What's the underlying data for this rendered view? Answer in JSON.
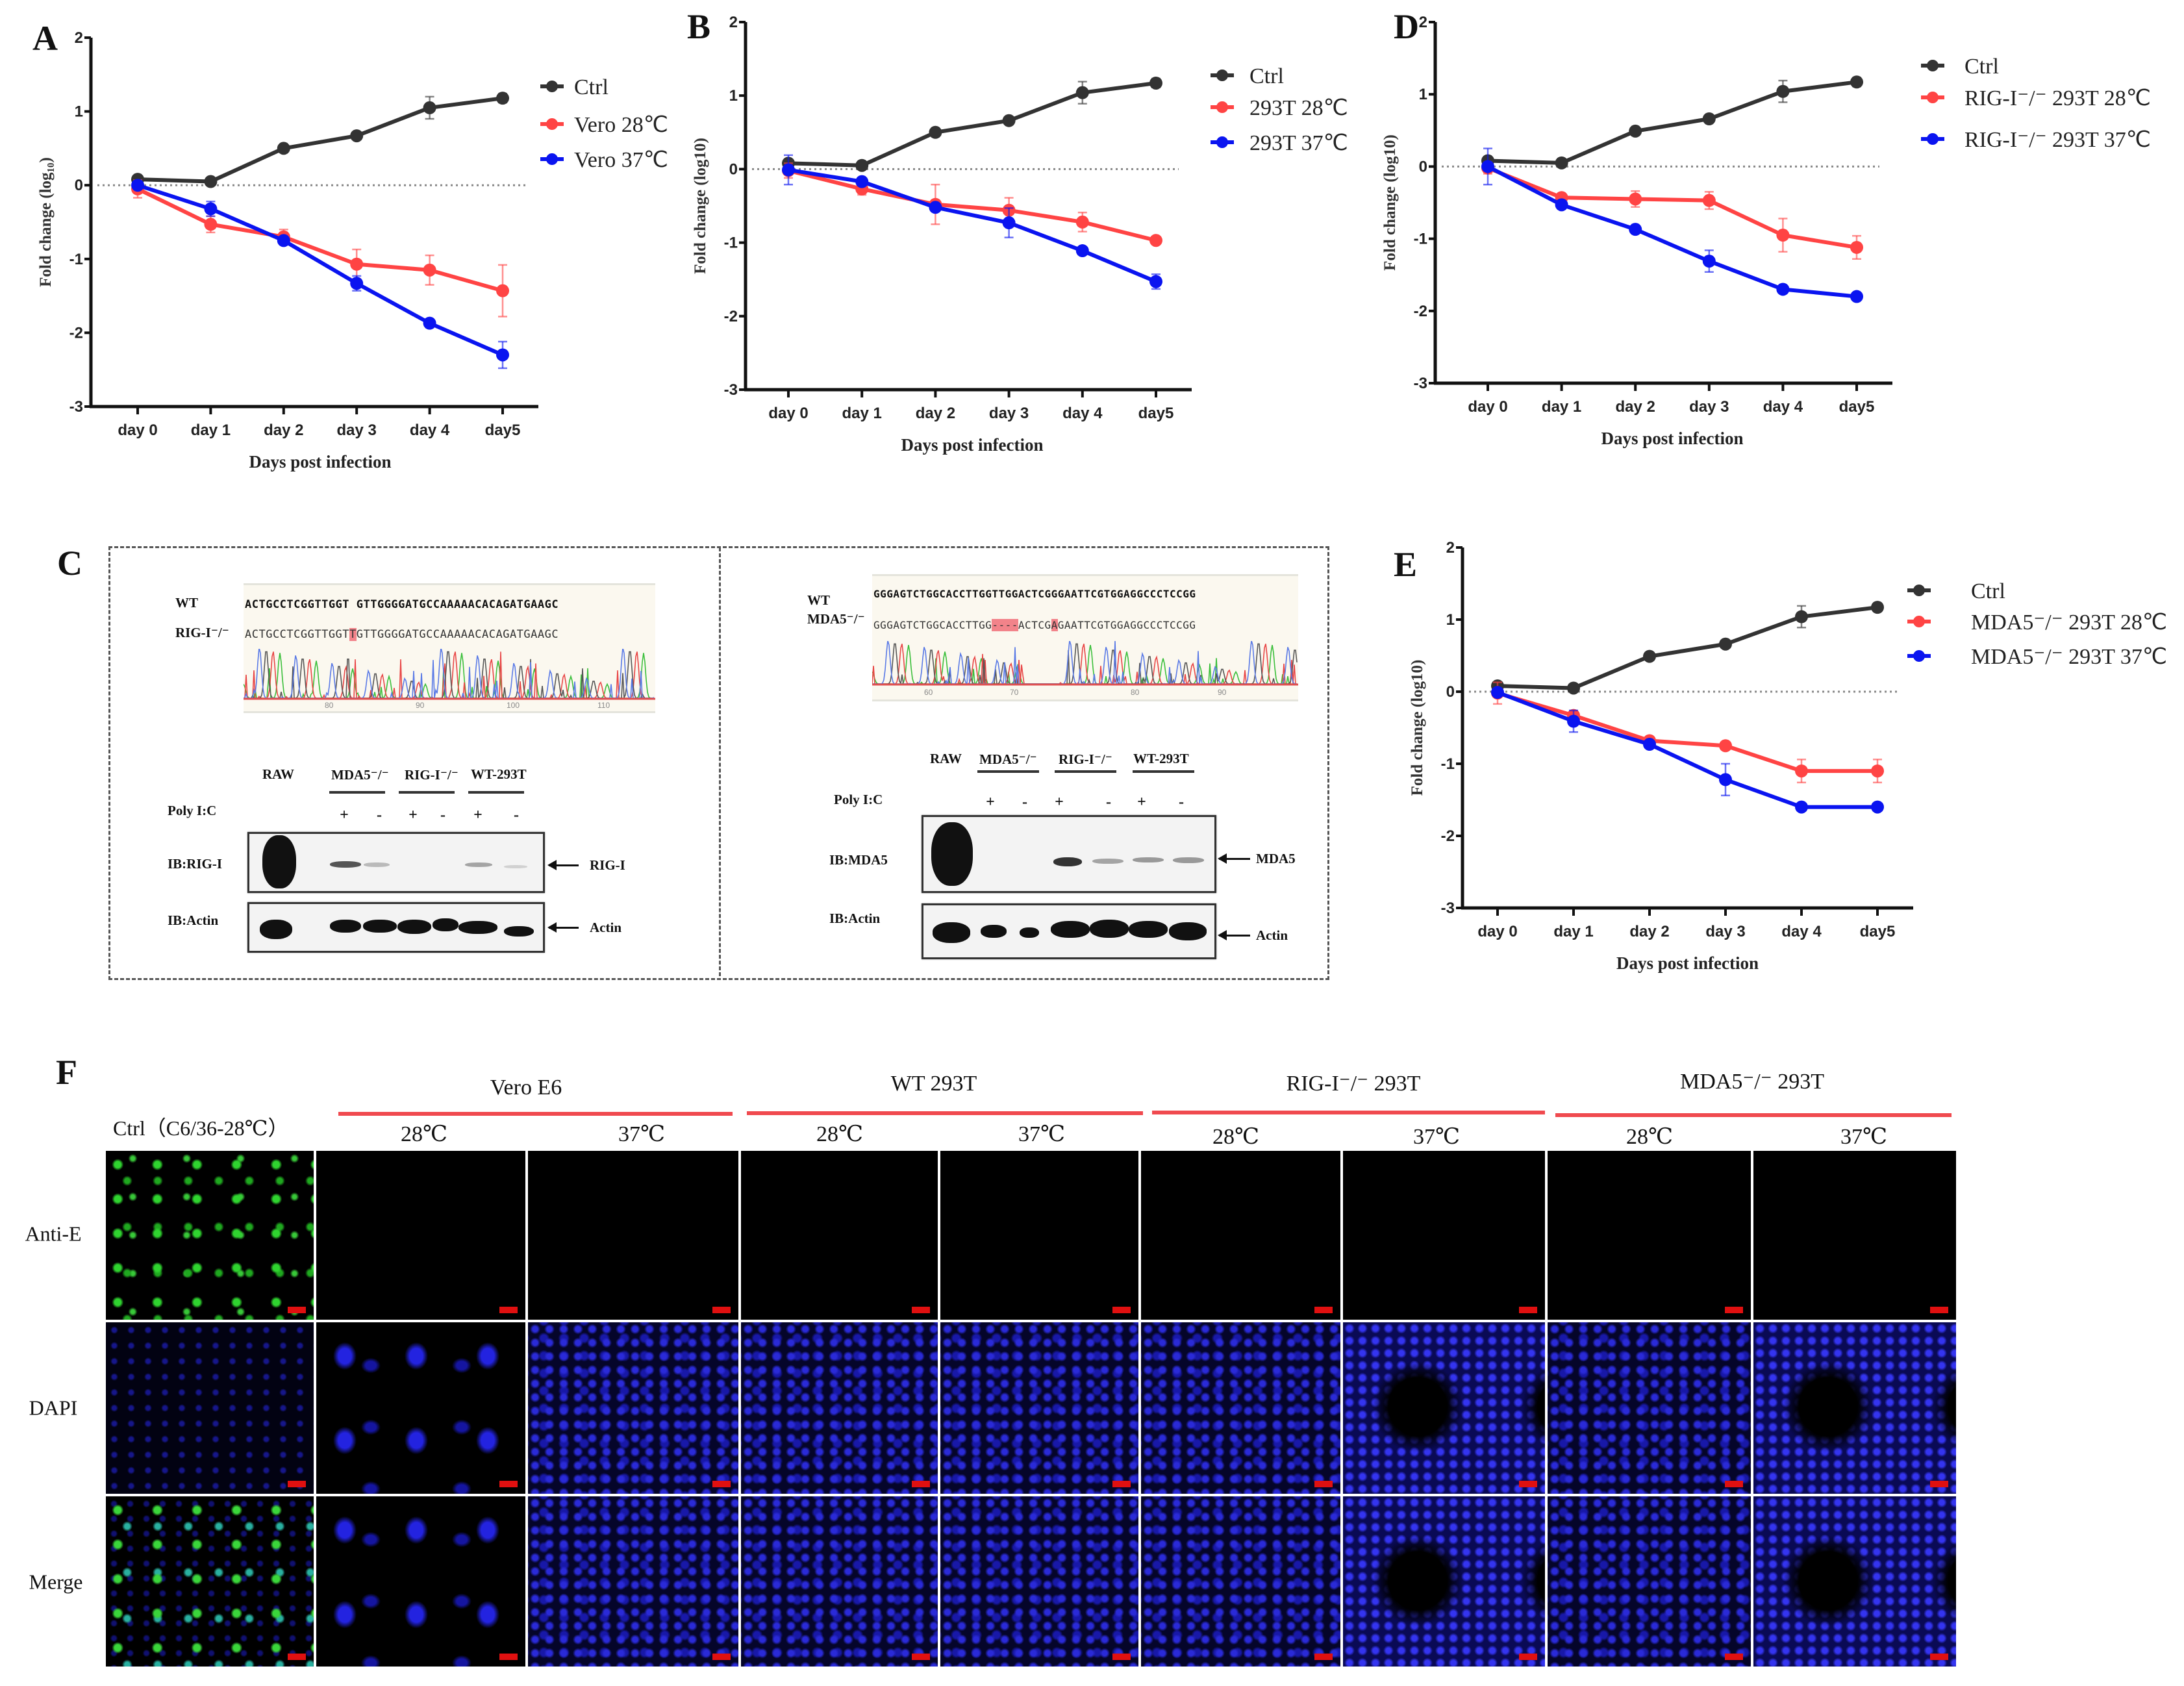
{
  "panel_letters": {
    "A": "A",
    "B": "B",
    "C": "C",
    "D": "D",
    "E": "E",
    "F": "F"
  },
  "chart_data": [
    {
      "id": "A",
      "type": "line",
      "title": "",
      "xlabel": "Days post infection",
      "ylabel": "Fold change (log₁₀)",
      "categories": [
        "day 0",
        "day 1",
        "day 2",
        "day 3",
        "day 4",
        "day5"
      ],
      "ylim": [
        -3,
        2
      ],
      "yticks": [
        "-3",
        "-2",
        "-1",
        "0",
        "1",
        "2"
      ],
      "reference_line": 0,
      "legend": "right",
      "series": [
        {
          "name": "Ctrl",
          "color": "#333333",
          "values": [
            0.08,
            0.05,
            0.5,
            0.67,
            1.05,
            1.18
          ],
          "error": [
            0.05,
            0.03,
            0.03,
            0.03,
            0.15,
            0.06
          ]
        },
        {
          "name": "Vero 28℃",
          "color": "#ff4444",
          "values": [
            -0.05,
            -0.53,
            -0.7,
            -1.07,
            -1.15,
            -1.43
          ],
          "error": [
            0.12,
            0.11,
            0.1,
            0.2,
            0.2,
            0.35
          ]
        },
        {
          "name": "Vero 37℃",
          "color": "#0a14f0",
          "values": [
            0.0,
            -0.32,
            -0.75,
            -1.33,
            -1.87,
            -2.3
          ],
          "error": [
            0.05,
            0.1,
            0.05,
            0.1,
            0.05,
            0.18
          ]
        }
      ]
    },
    {
      "id": "B",
      "type": "line",
      "title": "",
      "xlabel": "Days post infection",
      "ylabel": "Fold change (log10)",
      "categories": [
        "day 0",
        "day 1",
        "day 2",
        "day 3",
        "day 4",
        "day5"
      ],
      "ylim": [
        -3,
        2
      ],
      "yticks": [
        "-3",
        "-2",
        "-1",
        "0",
        "1",
        "2"
      ],
      "reference_line": 0,
      "legend": "right",
      "series": [
        {
          "name": "Ctrl",
          "color": "#333333",
          "values": [
            0.08,
            0.05,
            0.5,
            0.66,
            1.04,
            1.17
          ],
          "error": [
            0.05,
            0.03,
            0.03,
            0.03,
            0.15,
            0.06
          ]
        },
        {
          "name": "293T 28℃",
          "color": "#ff4444",
          "values": [
            -0.02,
            -0.27,
            -0.48,
            -0.56,
            -0.72,
            -0.97
          ],
          "error": [
            0.1,
            0.08,
            0.27,
            0.17,
            0.13,
            0.04
          ]
        },
        {
          "name": "293T 37℃",
          "color": "#0a14f0",
          "values": [
            -0.01,
            -0.17,
            -0.52,
            -0.73,
            -1.11,
            -1.53
          ],
          "error": [
            0.2,
            0.05,
            0.05,
            0.2,
            0.05,
            0.1
          ]
        }
      ]
    },
    {
      "id": "D",
      "type": "line",
      "title": "",
      "xlabel": "Days post infection",
      "ylabel": "Fold change (log10)",
      "categories": [
        "day 0",
        "day 1",
        "day 2",
        "day 3",
        "day 4",
        "day5"
      ],
      "ylim": [
        -3,
        2
      ],
      "yticks": [
        "-3",
        "-2",
        "-1",
        "0",
        "1",
        "2"
      ],
      "reference_line": 0,
      "legend": "right",
      "series": [
        {
          "name": "Ctrl",
          "color": "#333333",
          "values": [
            0.08,
            0.05,
            0.49,
            0.66,
            1.04,
            1.17
          ],
          "error": [
            0.05,
            0.03,
            0.03,
            0.03,
            0.15,
            0.06
          ]
        },
        {
          "name": "RIG-I⁻/⁻ 293T 28℃",
          "color": "#ff4444",
          "values": [
            -0.02,
            -0.43,
            -0.45,
            -0.47,
            -0.95,
            -1.12
          ],
          "error": [
            0.08,
            0.05,
            0.11,
            0.12,
            0.23,
            0.16
          ]
        },
        {
          "name": "RIG-I⁻/⁻ 293T 37℃",
          "color": "#0a14f0",
          "values": [
            0.0,
            -0.53,
            -0.87,
            -1.31,
            -1.7,
            -1.8
          ],
          "error": [
            0.25,
            0.05,
            0.05,
            0.15,
            0.04,
            0.04
          ]
        }
      ]
    },
    {
      "id": "E",
      "type": "line",
      "title": "",
      "xlabel": "Days post infection",
      "ylabel": "Fold change (log10)",
      "categories": [
        "day 0",
        "day 1",
        "day 2",
        "day 3",
        "day 4",
        "day5"
      ],
      "ylim": [
        -3,
        2
      ],
      "yticks": [
        "-3",
        "-2",
        "-1",
        "0",
        "1",
        "2"
      ],
      "reference_line": 0,
      "legend": "right",
      "series": [
        {
          "name": "Ctrl",
          "color": "#333333",
          "values": [
            0.08,
            0.05,
            0.49,
            0.66,
            1.04,
            1.17
          ],
          "error": [
            0.05,
            0.03,
            0.03,
            0.03,
            0.15,
            0.06
          ]
        },
        {
          "name": "MDA5⁻/⁻ 293T 28℃",
          "color": "#ff4444",
          "values": [
            -0.02,
            -0.33,
            -0.68,
            -0.75,
            -1.1,
            -1.1
          ],
          "error": [
            0.15,
            0.05,
            0.04,
            0.03,
            0.16,
            0.16
          ]
        },
        {
          "name": "MDA5⁻/⁻ 293T 37℃",
          "color": "#0a14f0",
          "values": [
            -0.01,
            -0.41,
            -0.73,
            -1.22,
            -1.6,
            -1.6
          ],
          "error": [
            0.05,
            0.15,
            0.05,
            0.22,
            0.05,
            0.05
          ]
        }
      ]
    }
  ],
  "panel_c": {
    "left": {
      "wt_label": "WT",
      "ko_label": "RIG-I⁻/⁻",
      "wt_seq": "ACTGCCTCGGTTGGT GTTGGGGATGCCAAAAACACAGATGAAGC",
      "ko_seq_a": "ACTGCCTCGGTTGGT",
      "ko_seq_hl": "T",
      "ko_seq_b": "GTTGGGGATGCCAAAAACACAGATGAAGC",
      "positions": [
        "80",
        "90",
        "100",
        "110"
      ],
      "lanes": [
        "RAW",
        "MDA5⁻/⁻",
        "RIG-I⁻/⁻",
        "WT-293T"
      ],
      "treatment_label": "Poly I:C",
      "treatments": [
        "+",
        "-",
        "+",
        "-",
        "+",
        "-"
      ],
      "blot1_label": "IB:RIG-I",
      "blot1_target": "RIG-I",
      "blot2_label": "IB:Actin",
      "blot2_target": "Actin"
    },
    "right": {
      "wt_label": "WT",
      "ko_label": "MDA5⁻/⁻",
      "wt_seq": "GGGAGTCTGGCACCTTGGTTGGACTCGGGAATTCGTGGAGGCCCTCCGG",
      "ko_seq_a": "GGGAGTCTGGCACCTTGG",
      "ko_seq_hl": "----",
      "ko_seq_b": "ACTCG",
      "ko_seq_hl2": "A",
      "ko_seq_c": "GAATTCGTGGAGGCCCTCCGG",
      "positions": [
        "60",
        "70",
        "80",
        "90"
      ],
      "lanes": [
        "RAW",
        "MDA5⁻/⁻",
        "RIG-I⁻/⁻",
        "WT-293T"
      ],
      "treatment_label": "Poly I:C",
      "treatments": [
        "+",
        "-",
        "+",
        "-",
        "+",
        "-"
      ],
      "blot1_label": "IB:MDA5",
      "blot1_target": "MDA5",
      "blot2_label": "IB:Actin",
      "blot2_target": "Actin"
    }
  },
  "panel_f": {
    "ctrl_label": "Ctrl（C6/36-28℃）",
    "groups": [
      "Vero E6",
      "WT 293T",
      "RIG-I⁻/⁻ 293T",
      "MDA5⁻/⁻ 293T"
    ],
    "temps": [
      "28℃",
      "37℃",
      "28℃",
      "37℃",
      "28℃",
      "37℃",
      "28℃",
      "37℃"
    ],
    "rows": [
      "Anti-E",
      "DAPI",
      "Merge"
    ],
    "accent_color": "#f04a4f"
  }
}
